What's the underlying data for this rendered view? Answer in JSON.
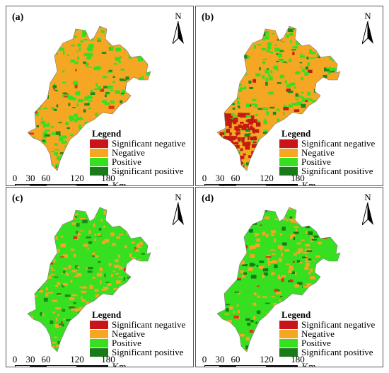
{
  "panels": [
    {
      "label": "(a)",
      "fill": "#f5a623",
      "patch": "#36e020",
      "patch2": "#1a8a1a",
      "accent": "#e0321a"
    },
    {
      "label": "(b)",
      "fill": "#f5a623",
      "patch": "#36e020",
      "patch2": "#1a8a1a",
      "accent": "#c41a10"
    },
    {
      "label": "(c)",
      "fill": "#36e020",
      "patch": "#f5a623",
      "patch2": "#1a8a1a",
      "accent": "#e0321a"
    },
    {
      "label": "(d)",
      "fill": "#36e020",
      "patch": "#f5a623",
      "patch2": "#157a15",
      "accent": "#e0321a"
    }
  ],
  "north_label": "N",
  "legend": {
    "title": "Legend",
    "items": [
      {
        "label": "Significant negative",
        "color": "#c8141a"
      },
      {
        "label": "Negative",
        "color": "#f5a623"
      },
      {
        "label": "Positive",
        "color": "#36e020"
      },
      {
        "label": "Significant positive",
        "color": "#1a7a1a"
      }
    ]
  },
  "scale": {
    "ticks": [
      "0",
      "30",
      "60",
      "120",
      "180"
    ],
    "unit": "Km"
  }
}
